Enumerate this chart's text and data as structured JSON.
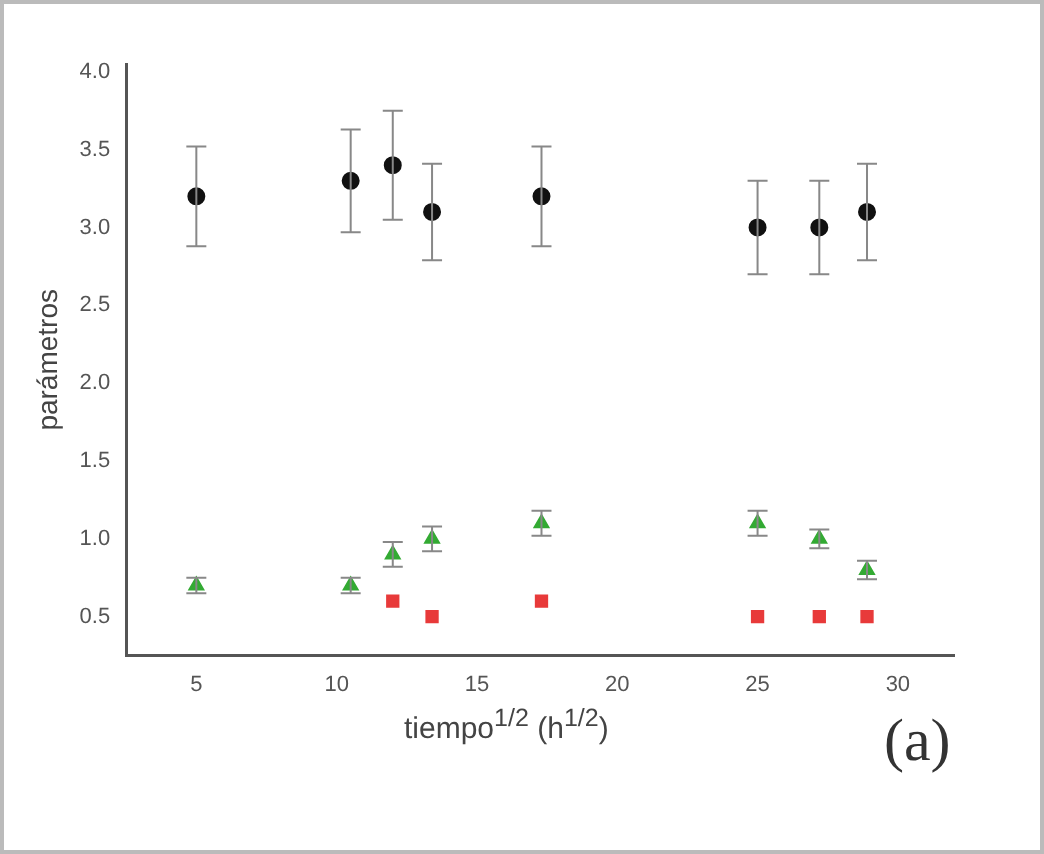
{
  "chart_data": {
    "type": "scatter",
    "xlabel": "tiempo$^{1/2}$ (h$^{1/2}$)",
    "ylabel": "parámetros",
    "x": [
      5,
      10.5,
      12,
      13.4,
      17.3,
      25,
      27.2,
      28.9
    ],
    "series": [
      {
        "color": "#111111",
        "marker": "circle",
        "values": [
          3.2,
          3.3,
          3.4,
          3.1,
          3.2,
          3.0,
          3.0,
          3.1
        ],
        "errors": [
          0.32,
          0.33,
          0.35,
          0.31,
          0.32,
          0.3,
          0.3,
          0.31
        ]
      },
      {
        "color": "#33aa33",
        "marker": "triangle",
        "values": [
          0.7,
          0.7,
          0.9,
          1.0,
          1.1,
          1.1,
          1.0,
          0.8
        ],
        "errors": [
          0.05,
          0.05,
          0.08,
          0.08,
          0.08,
          0.08,
          0.06,
          0.06
        ]
      },
      {
        "color": "#e83a3a",
        "marker": "square",
        "values": [
          null,
          null,
          0.6,
          0.5,
          0.6,
          0.5,
          0.5,
          0.5
        ]
      }
    ],
    "xlim": [
      2.5,
      32
    ],
    "xticks": [
      5,
      10,
      15,
      20,
      25,
      30
    ],
    "ylim": [
      0.25,
      4.05
    ],
    "yticks": [
      0.5,
      {
        "value": 1,
        "label": "1.0"
      },
      1.5,
      {
        "value": 2,
        "label": "2.0"
      },
      2.5,
      {
        "value": 3,
        "label": "3.0"
      },
      3.5,
      {
        "value": 4,
        "label": "4.0"
      }
    ],
    "grid": false,
    "legend": false,
    "annotations": [
      "(a)"
    ]
  }
}
